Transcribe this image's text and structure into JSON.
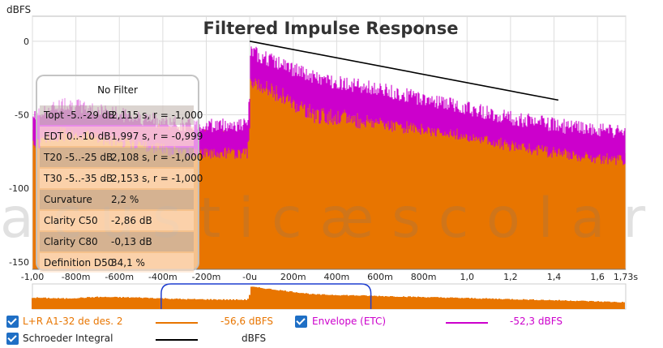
{
  "chart_data": {
    "type": "line",
    "title": "Filtered Impulse Response",
    "ylabel": "dBFS",
    "xlim": [
      -1.0,
      1.73
    ],
    "ylim": [
      -155,
      17
    ],
    "x_ticks": [
      {
        "v": -1.0,
        "label": "-1,00"
      },
      {
        "v": -0.8,
        "label": "-800m"
      },
      {
        "v": -0.6,
        "label": "-600m"
      },
      {
        "v": -0.4,
        "label": "-400m"
      },
      {
        "v": -0.2,
        "label": "-200m"
      },
      {
        "v": 0.0,
        "label": "-0u"
      },
      {
        "v": 0.2,
        "label": "200m"
      },
      {
        "v": 0.4,
        "label": "400m"
      },
      {
        "v": 0.6,
        "label": "600m"
      },
      {
        "v": 0.8,
        "label": "800m"
      },
      {
        "v": 1.0,
        "label": "1,0"
      },
      {
        "v": 1.2,
        "label": "1,2"
      },
      {
        "v": 1.4,
        "label": "1,4"
      },
      {
        "v": 1.6,
        "label": "1,6"
      },
      {
        "v": 1.73,
        "label": "1,73s"
      }
    ],
    "y_ticks": [
      {
        "v": 0,
        "label": "0"
      },
      {
        "v": -50,
        "label": "-50"
      },
      {
        "v": -100,
        "label": "-100"
      },
      {
        "v": -150,
        "label": "-150"
      }
    ],
    "grid": true,
    "series": [
      {
        "name": "L+R A1-32 de des. 2",
        "color": "#e87500",
        "x": [
          -1.0,
          -0.85,
          -0.7,
          -0.5,
          -0.3,
          -0.01,
          0.0,
          0.001,
          0.3,
          0.6,
          0.9,
          1.2,
          1.5,
          1.73
        ],
        "y": [
          -60,
          -63,
          -58,
          -60,
          -65,
          -67,
          -50,
          -25,
          -50,
          -55,
          -60,
          -65,
          -70,
          -75
        ]
      },
      {
        "name": "Envelope (ETC)",
        "color": "#cc00cc",
        "x": [
          -1.0,
          -0.85,
          -0.7,
          -0.5,
          -0.3,
          -0.01,
          0.0,
          0.001,
          0.3,
          0.6,
          0.9,
          1.2,
          1.5,
          1.73
        ],
        "y": [
          -55,
          -45,
          -50,
          -55,
          -60,
          -60,
          -40,
          -10,
          -28,
          -36,
          -45,
          -55,
          -62,
          -65
        ]
      },
      {
        "name": "Schroeder Integral",
        "color": "#000000",
        "x": [
          0.0,
          1.42
        ],
        "y": [
          0.0,
          -40.0
        ]
      }
    ]
  },
  "stats": {
    "title": "No Filter",
    "rows": [
      {
        "label": "Topt -5..-29 dB",
        "value": "2,115  s,  r = -1,000",
        "shade": "dark"
      },
      {
        "label": "EDT  0..-10 dB",
        "value": "1,997  s,  r = -0,999",
        "shade": "light"
      },
      {
        "label": "T20 -5..-25 dB",
        "value": "2,108  s,  r = -1,000",
        "shade": "dark"
      },
      {
        "label": "T30 -5..-35 dB",
        "value": "2,153  s,  r = -1,000",
        "shade": "light"
      },
      {
        "label": "Curvature",
        "value": "2,2 %",
        "shade": "dark"
      },
      {
        "label": "Clarity C50",
        "value": "-2,86 dB",
        "shade": "light"
      },
      {
        "label": "Clarity C80",
        "value": "-0,13 dB",
        "shade": "dark"
      },
      {
        "label": "Definition D50",
        "value": "34,1 %",
        "shade": "light"
      }
    ]
  },
  "watermark": "acústicæscolar",
  "legend": {
    "row1": {
      "name": "L+R A1-32 de des. 2",
      "value": "-56,6 dBFS",
      "color": "#e87500",
      "name2": "Envelope (ETC)",
      "value2": "-52,3 dBFS",
      "color2": "#cc00cc"
    },
    "row2": {
      "name": "Schroeder Integral",
      "value": "dBFS",
      "color": "#000000"
    }
  }
}
